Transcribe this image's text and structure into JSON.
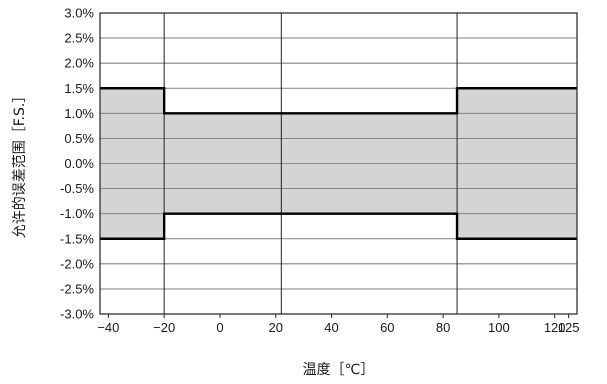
{
  "chart_data": {
    "type": "area",
    "title": "",
    "xlabel": "温度［℃］",
    "ylabel": "允许的误差范围［F.S.］",
    "xlim": [
      -43,
      128
    ],
    "ylim": [
      -3.0,
      3.0
    ],
    "x_ticks": [
      -40,
      -20,
      0,
      20,
      40,
      60,
      80,
      100,
      120,
      125
    ],
    "x_tick_labels": [
      "−40",
      "−20",
      "0",
      "20",
      "40",
      "60",
      "80",
      "100",
      "120",
      "125"
    ],
    "y_ticks": [
      3.0,
      2.5,
      2.0,
      1.5,
      1.0,
      0.5,
      0.0,
      -0.5,
      -1.0,
      -1.5,
      -2.0,
      -2.5,
      -3.0
    ],
    "y_tick_labels": [
      "3.0%",
      "2.5%",
      "2.0%",
      "1.5%",
      "1.0%",
      "0.5%",
      "0.0%",
      "-0.5%",
      "-1.0%",
      "-1.5%",
      "-2.0%",
      "-2.5%",
      "-3.0%"
    ],
    "vertical_gridlines": [
      -20,
      22,
      85
    ],
    "grid": true,
    "fill_color": "#cccccc",
    "line_color": "#000000",
    "series": [
      {
        "x": [
          -43,
          -20,
          -20,
          85,
          85,
          128
        ],
        "upper": [
          1.5,
          1.5,
          1.0,
          1.0,
          1.5,
          1.5
        ],
        "lower": [
          -1.5,
          -1.5,
          -1.0,
          -1.0,
          -1.5,
          -1.5
        ]
      }
    ]
  }
}
